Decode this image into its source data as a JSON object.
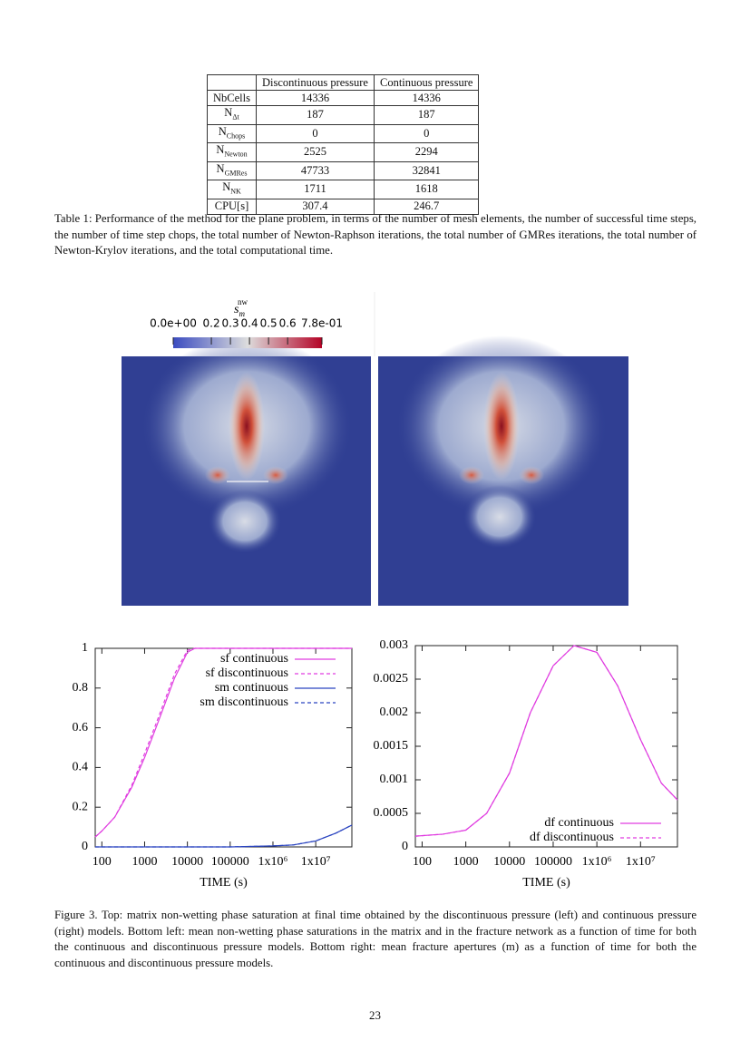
{
  "table": {
    "columns": [
      "Discontinuous pressure",
      "Continuous pressure"
    ],
    "rows": [
      {
        "name": "NbCells",
        "values": [
          14336,
          14336
        ]
      },
      {
        "name": "N",
        "sub": "Δt",
        "values": [
          187,
          187
        ]
      },
      {
        "name": "N",
        "sub": "Chops",
        "values": [
          0,
          0
        ]
      },
      {
        "name": "N",
        "sub": "Newton",
        "values": [
          2525,
          2294
        ]
      },
      {
        "name": "N",
        "sub": "GMRes",
        "values": [
          47733,
          32841
        ]
      },
      {
        "name": "N",
        "sub": "NK",
        "values": [
          1711,
          1618
        ]
      },
      {
        "name": "CPU[s]",
        "values": [
          307.4,
          246.7
        ]
      }
    ],
    "caption": "Table 1: Performance of the method for the plane problem, in terms of the number of mesh elements, the number of successful time steps, the number of time step chops, the total number of Newton-Raphson iterations, the total number of GMRes iterations, the total number of Newton-Krylov iterations, and the total computational time."
  },
  "figure": {
    "colorbar": {
      "title": "s",
      "title_sub": "m",
      "title_sup": "nw",
      "range": [
        0,
        0.78
      ],
      "ticks": [
        {
          "value": 0,
          "label": "0.0e+00"
        },
        0.2,
        0.3,
        0.4,
        0.5,
        0.6,
        {
          "value": 0.78,
          "label": "7.8e-01"
        }
      ]
    },
    "caption": "Figure 3. Top: matrix non-wetting phase saturation at final time obtained by the discontinuous pressure (left) and continuous pressure (right) models. Bottom left: mean non-wetting phase saturations in the matrix and in the fracture network as a function of time for both the continuous and discontinuous pressure models. Bottom right: mean fracture apertures (m) as a function of time for both the continuous and discontinuous pressure models."
  },
  "chart_data": [
    {
      "type": "line",
      "xlabel": "TIME (s)",
      "xscale": "log",
      "xlim": [
        70,
        70000000
      ],
      "ylim": [
        0,
        1
      ],
      "yticks": [
        0,
        0.2,
        0.4,
        0.6,
        0.8,
        1
      ],
      "xticks": [
        100,
        1000,
        10000,
        100000,
        {
          "value": 1000000,
          "label": "1x10⁶"
        },
        {
          "value": 10000000,
          "label": "1x10⁷"
        }
      ],
      "legend": "top-right",
      "x": [
        70,
        100,
        200,
        500,
        1000,
        2000,
        5000,
        10000,
        15000,
        100000,
        1000000,
        3000000,
        10000000,
        30000000,
        70000000
      ],
      "series": [
        {
          "name": "sf continuous",
          "color": "#e03ce0",
          "style": "solid",
          "values": [
            0.05,
            0.08,
            0.15,
            0.3,
            0.45,
            0.62,
            0.85,
            0.98,
            1,
            1,
            1,
            1,
            1,
            1,
            1
          ]
        },
        {
          "name": "sf discontinuous",
          "color": "#e03ce0",
          "style": "dashed",
          "values": [
            0.05,
            0.08,
            0.15,
            0.31,
            0.47,
            0.64,
            0.87,
            0.99,
            1,
            1,
            1,
            1,
            1,
            1,
            1
          ]
        },
        {
          "name": "sm continuous",
          "color": "#2a44c0",
          "style": "solid",
          "values": [
            0,
            0,
            0,
            0,
            0,
            0,
            0,
            0,
            0,
            0,
            0.005,
            0.01,
            0.03,
            0.07,
            0.11
          ]
        },
        {
          "name": "sm discontinuous",
          "color": "#2a44c0",
          "style": "dashed",
          "values": [
            0,
            0,
            0,
            0,
            0,
            0,
            0,
            0,
            0,
            0,
            0.005,
            0.01,
            0.03,
            0.07,
            0.11
          ]
        }
      ]
    },
    {
      "type": "line",
      "xlabel": "TIME (s)",
      "xscale": "log",
      "xlim": [
        70,
        70000000
      ],
      "ylim": [
        0,
        0.003
      ],
      "yticks": [
        0,
        0.0005,
        0.001,
        0.0015,
        0.002,
        0.0025,
        0.003
      ],
      "xticks": [
        100,
        1000,
        10000,
        100000,
        {
          "value": 1000000,
          "label": "1x10⁶"
        },
        {
          "value": 10000000,
          "label": "1x10⁷"
        }
      ],
      "legend": "bottom-right",
      "x": [
        70,
        300,
        1000,
        3000,
        10000,
        30000,
        100000,
        300000,
        1000000,
        3000000,
        10000000,
        30000000,
        70000000
      ],
      "series": [
        {
          "name": "df continuous",
          "color": "#e03ce0",
          "style": "solid",
          "values": [
            0.00016,
            0.00019,
            0.00025,
            0.0005,
            0.0011,
            0.002,
            0.0027,
            0.003,
            0.0029,
            0.0024,
            0.0016,
            0.00095,
            0.0007
          ]
        },
        {
          "name": "df discontinuous",
          "color": "#e03ce0",
          "style": "dashed",
          "values": [
            0.00016,
            0.00019,
            0.00025,
            0.0005,
            0.0011,
            0.002,
            0.0027,
            0.003,
            0.0029,
            0.0024,
            0.0016,
            0.00095,
            0.0007
          ]
        }
      ]
    }
  ],
  "page_number": 23
}
